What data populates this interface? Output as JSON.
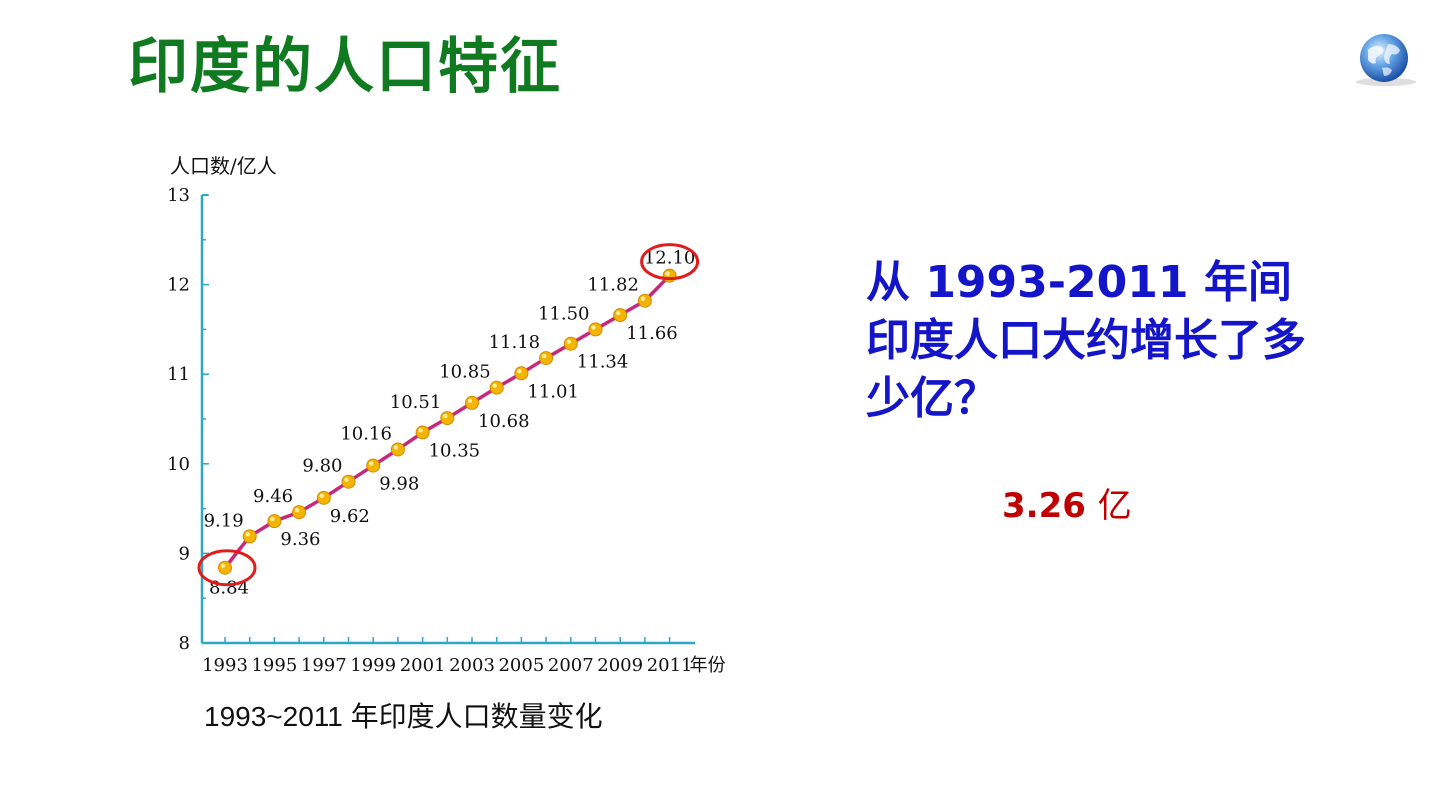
{
  "slide": {
    "title": "印度的人口特征",
    "caption": "1993~2011 年印度人口数量变化",
    "question": "从 1993-2011 年间印度人口大约增长了多少亿？",
    "answer_value": "3.26",
    "answer_unit": "亿",
    "icon": "globe-icon"
  },
  "colors": {
    "title": "#0f7a1f",
    "axis": "#2aa8c8",
    "line": "#c8287a",
    "marker": "#f5b400",
    "highlight": "#e01c1c",
    "question": "#1414c8",
    "answer": "#c00000"
  },
  "chart_data": {
    "type": "line",
    "ylabel": "人口数/亿人",
    "xlabel": "年份",
    "ylim": [
      8,
      13
    ],
    "yticks": [
      8,
      9,
      10,
      11,
      12,
      13
    ],
    "xtick_labels": [
      "1993",
      "1995",
      "1997",
      "1999",
      "2001",
      "2003",
      "2005",
      "2007",
      "2009",
      "2011"
    ],
    "x": [
      1993,
      1994,
      1995,
      1996,
      1997,
      1998,
      1999,
      2000,
      2001,
      2002,
      2003,
      2004,
      2005,
      2006,
      2007,
      2008,
      2009,
      2010,
      2011
    ],
    "labels": [
      "8.84",
      "9.19",
      "9.36",
      "9.46",
      "9.62",
      "9.80",
      "9.98",
      "10.16",
      "10.35",
      "10.51",
      "10.68",
      "10.85",
      "11.01",
      "11.18",
      "11.34",
      "11.50",
      "11.66",
      "11.82",
      "12.10"
    ],
    "values": [
      8.84,
      9.19,
      9.36,
      9.46,
      9.62,
      9.8,
      9.98,
      10.16,
      10.35,
      10.51,
      10.68,
      10.85,
      11.01,
      11.18,
      11.34,
      11.5,
      11.66,
      11.82,
      12.1
    ],
    "highlighted": [
      1993,
      2011
    ],
    "grid": false,
    "legend": "none"
  }
}
